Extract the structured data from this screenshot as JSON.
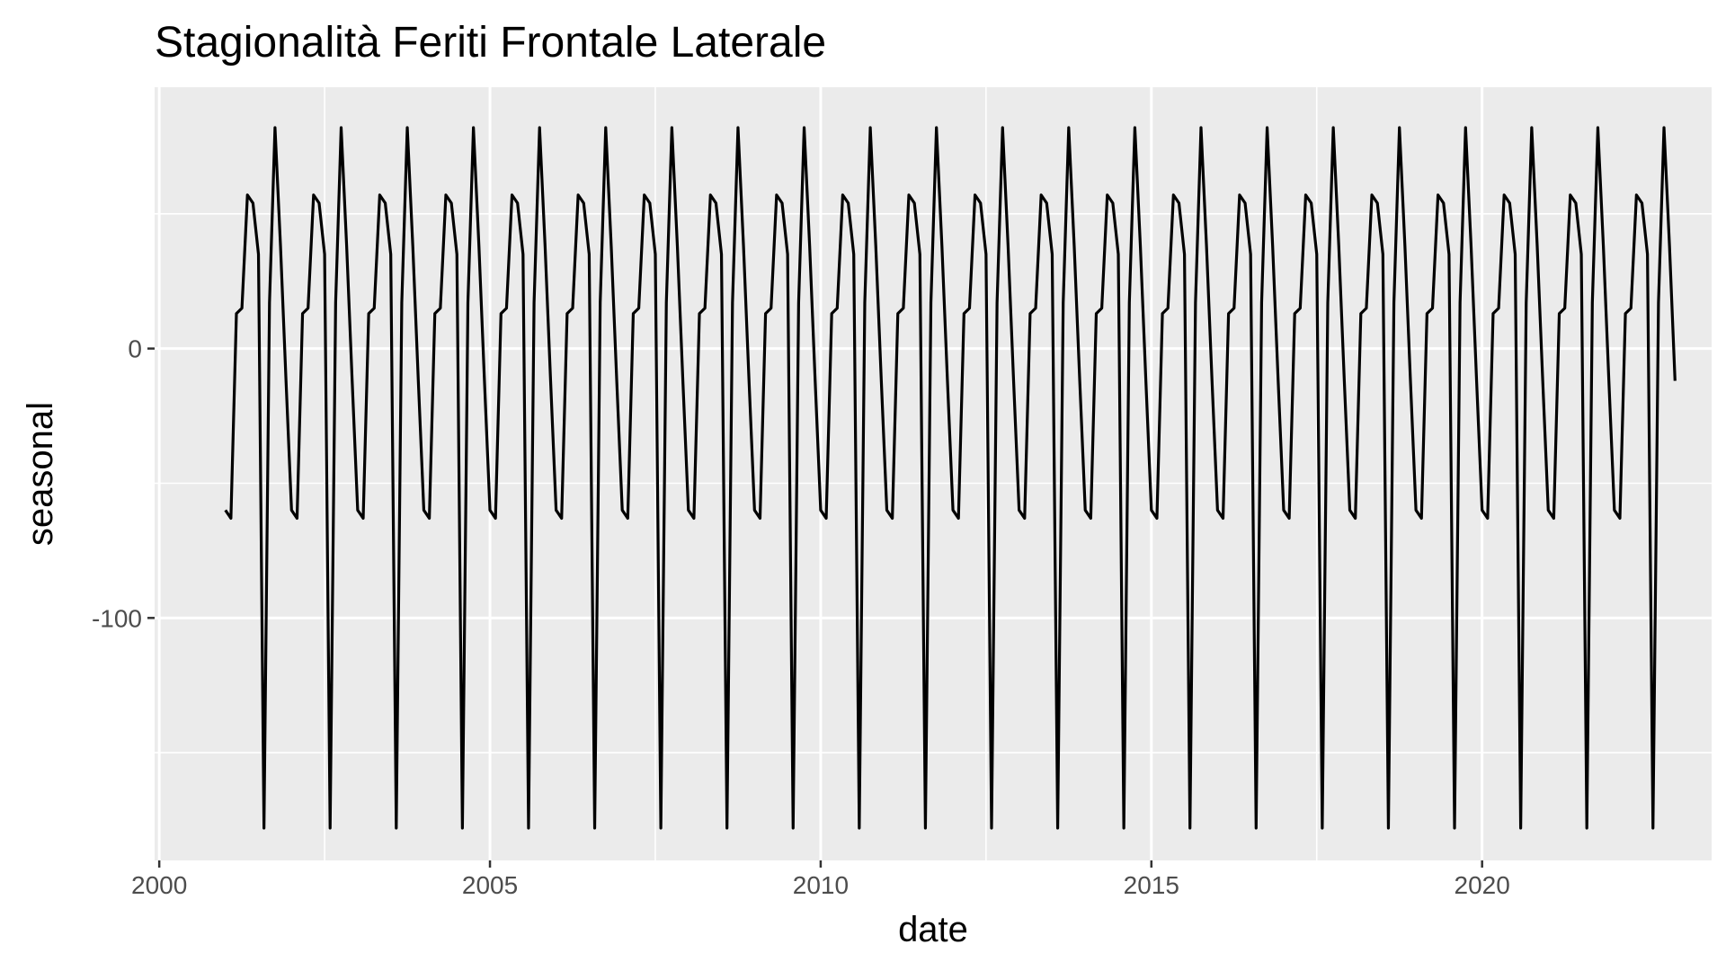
{
  "chart_data": {
    "type": "line",
    "title": "Stagionalità Feriti Frontale Laterale",
    "xlabel": "date",
    "ylabel": "seasonal",
    "xlim": [
      1999.93,
      2023.47
    ],
    "ylim": [
      -190,
      97
    ],
    "x_ticks": [
      {
        "value": 2000,
        "label": "2000"
      },
      {
        "value": 2005,
        "label": "2005"
      },
      {
        "value": 2010,
        "label": "2010"
      },
      {
        "value": 2015,
        "label": "2015"
      },
      {
        "value": 2020,
        "label": "2020"
      }
    ],
    "y_ticks": [
      {
        "value": 0,
        "label": "0"
      },
      {
        "value": -100,
        "label": "-100"
      }
    ],
    "grid": true,
    "line_color": "#000000",
    "panel_background": "#ebebeb",
    "grid_color": "#ffffff",
    "series": [
      {
        "start": "2001-01",
        "frequency": "monthly",
        "end": "2022-12",
        "seasonal_pattern": [
          -60,
          -63,
          13,
          15,
          57,
          54,
          35,
          -178,
          17,
          82,
          38,
          -12
        ]
      }
    ]
  }
}
